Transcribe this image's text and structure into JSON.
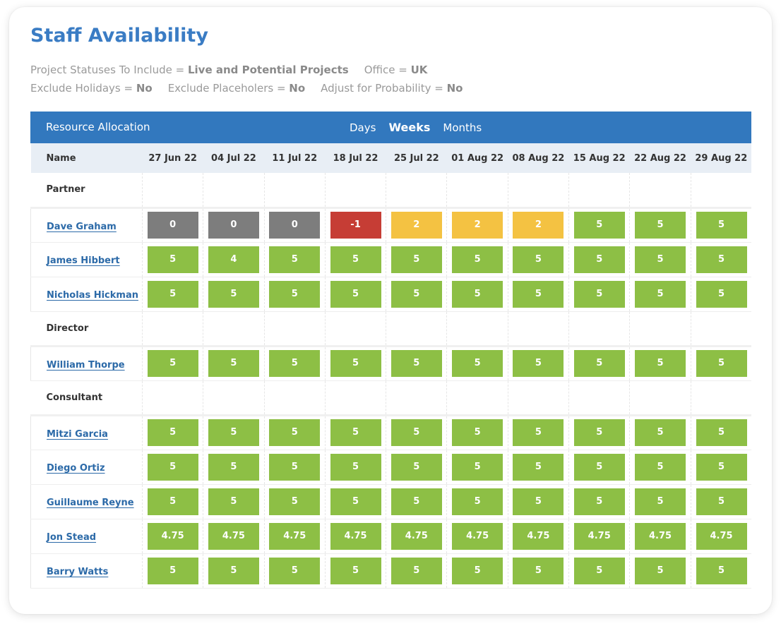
{
  "title": "Staff Availability",
  "filters": [
    [
      {
        "label": "Project Statuses To Include = ",
        "value": "Live and Potential Projects"
      },
      {
        "label": "Office = ",
        "value": "UK"
      }
    ],
    [
      {
        "label": "Exclude Holidays = ",
        "value": "No"
      },
      {
        "label": "Exclude Placeholers = ",
        "value": "No"
      },
      {
        "label": "Adjust for Probability = ",
        "value": "No"
      }
    ]
  ],
  "toolbar": {
    "label": "Resource Allocation",
    "views": [
      "Days",
      "Weeks",
      "Months"
    ],
    "active_view": "Weeks"
  },
  "table": {
    "name_header": "Name",
    "weeks": [
      "27 Jun 22",
      "04 Jul 22",
      "11 Jul 22",
      "18 Jul 22",
      "25 Jul 22",
      "01 Aug 22",
      "08 Aug 22",
      "15 Aug 22",
      "22 Aug 22",
      "29 Aug 22"
    ],
    "groups": [
      {
        "name": "Partner",
        "people": [
          {
            "name": "Dave Graham",
            "values": [
              "0",
              "0",
              "0",
              "-1",
              "2",
              "2",
              "2",
              "5",
              "5",
              "5"
            ]
          },
          {
            "name": "James Hibbert",
            "values": [
              "5",
              "4",
              "5",
              "5",
              "5",
              "5",
              "5",
              "5",
              "5",
              "5"
            ]
          },
          {
            "name": "Nicholas Hickman",
            "values": [
              "5",
              "5",
              "5",
              "5",
              "5",
              "5",
              "5",
              "5",
              "5",
              "5"
            ]
          }
        ]
      },
      {
        "name": "Director",
        "people": [
          {
            "name": "William Thorpe",
            "values": [
              "5",
              "5",
              "5",
              "5",
              "5",
              "5",
              "5",
              "5",
              "5",
              "5"
            ]
          }
        ]
      },
      {
        "name": "Consultant",
        "people": [
          {
            "name": "Mitzi Garcia",
            "values": [
              "5",
              "5",
              "5",
              "5",
              "5",
              "5",
              "5",
              "5",
              "5",
              "5"
            ]
          },
          {
            "name": "Diego Ortiz",
            "values": [
              "5",
              "5",
              "5",
              "5",
              "5",
              "5",
              "5",
              "5",
              "5",
              "5"
            ]
          },
          {
            "name": "Guillaume Reyne",
            "values": [
              "5",
              "5",
              "5",
              "5",
              "5",
              "5",
              "5",
              "5",
              "5",
              "5"
            ]
          },
          {
            "name": "Jon Stead",
            "values": [
              "4.75",
              "4.75",
              "4.75",
              "4.75",
              "4.75",
              "4.75",
              "4.75",
              "4.75",
              "4.75",
              "4.75"
            ]
          },
          {
            "name": "Barry Watts",
            "values": [
              "5",
              "5",
              "5",
              "5",
              "5",
              "5",
              "5",
              "5",
              "5",
              "5"
            ]
          }
        ]
      }
    ]
  },
  "colors": {
    "title": "#3a7cc4",
    "header_bar": "#3278be",
    "available": "#8dbf45",
    "partial": "#f4c242",
    "none": "#7d7d7d",
    "over": "#c63d35"
  }
}
